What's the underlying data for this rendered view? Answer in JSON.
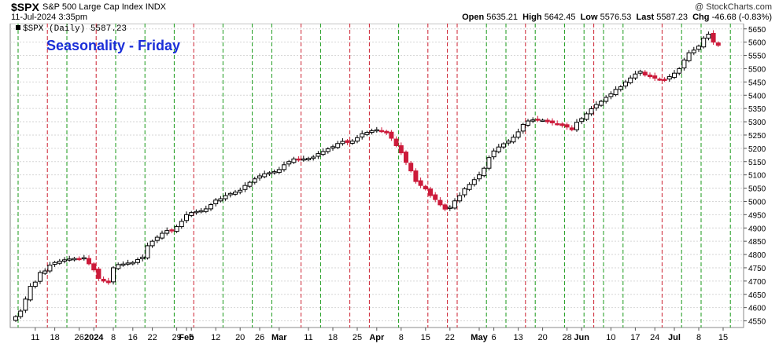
{
  "header": {
    "symbol": "$SPX",
    "name": "S&P 500 Large Cap Index",
    "exchange": "INDX",
    "datetime": "11-Jul-2024 3:35pm",
    "copyright": "@ StockCharts.com",
    "open_label": "Open",
    "open": "5635.21",
    "high_label": "High",
    "high": "5642.45",
    "low_label": "Low",
    "low": "5576.53",
    "last_label": "Last",
    "last": "5587.23",
    "chg_label": "Chg",
    "chg": "-46.68 (-0.83%)"
  },
  "chart_data": {
    "type": "candlestick",
    "title": "Seasonality - Friday",
    "legend": "$SPX (Daily) 5587.23",
    "legend_position": "top-left",
    "ylim": [
      4525,
      5670
    ],
    "y_ticks": [
      4550,
      4600,
      4650,
      4700,
      4750,
      4800,
      4850,
      4900,
      4950,
      5000,
      5050,
      5100,
      5150,
      5200,
      5250,
      5300,
      5350,
      5400,
      5450,
      5500,
      5550,
      5600,
      5650
    ],
    "x_tick_labels": [
      {
        "label": "11",
        "idx": 4
      },
      {
        "label": "18",
        "idx": 8
      },
      {
        "label": "26",
        "idx": 13
      },
      {
        "label": "2024",
        "idx": 16,
        "bold": true
      },
      {
        "label": "8",
        "idx": 20
      },
      {
        "label": "16",
        "idx": 24
      },
      {
        "label": "22",
        "idx": 28
      },
      {
        "label": "29",
        "idx": 33
      },
      {
        "label": "Feb",
        "idx": 35,
        "bold": true
      },
      {
        "label": "5",
        "idx": 36
      },
      {
        "label": "12",
        "idx": 41
      },
      {
        "label": "20",
        "idx": 46
      },
      {
        "label": "26",
        "idx": 50
      },
      {
        "label": "Mar",
        "idx": 54,
        "bold": true
      },
      {
        "label": "11",
        "idx": 60
      },
      {
        "label": "18",
        "idx": 65
      },
      {
        "label": "25",
        "idx": 70
      },
      {
        "label": "Apr",
        "idx": 74,
        "bold": true
      },
      {
        "label": "8",
        "idx": 79
      },
      {
        "label": "15",
        "idx": 84
      },
      {
        "label": "22",
        "idx": 89
      },
      {
        "label": "May",
        "idx": 95,
        "bold": true
      },
      {
        "label": "6",
        "idx": 98
      },
      {
        "label": "13",
        "idx": 103
      },
      {
        "label": "20",
        "idx": 108
      },
      {
        "label": "28",
        "idx": 113
      },
      {
        "label": "Jun",
        "idx": 116,
        "bold": true
      },
      {
        "label": "10",
        "idx": 122
      },
      {
        "label": "17",
        "idx": 127
      },
      {
        "label": "24",
        "idx": 131
      },
      {
        "label": "Jul",
        "idx": 135,
        "bold": true
      },
      {
        "label": "8",
        "idx": 140
      },
      {
        "label": "15",
        "idx": 145
      }
    ],
    "friday_up_idx": [
      0,
      10,
      20,
      26,
      32,
      42,
      48,
      52,
      62,
      78,
      96,
      100,
      106,
      112,
      116,
      120,
      124,
      136,
      140,
      146
    ],
    "friday_down_idx": [
      6,
      16,
      36,
      58,
      68,
      72,
      84,
      88,
      90,
      104,
      118,
      132
    ],
    "closes": [
      4566,
      4587,
      4632,
      4680,
      4696,
      4732,
      4738,
      4760,
      4770,
      4775,
      4780,
      4783,
      4785,
      4784,
      4788,
      4765,
      4742,
      4710,
      4700,
      4694,
      4750,
      4762,
      4764,
      4768,
      4770,
      4781,
      4790,
      4833,
      4850,
      4865,
      4880,
      4890,
      4890,
      4905,
      4925,
      4950,
      4958,
      4962,
      4965,
      4972,
      4988,
      5005,
      5010,
      5022,
      5030,
      5035,
      5042,
      5060,
      5072,
      5085,
      5096,
      5104,
      5108,
      5112,
      5120,
      5138,
      5150,
      5160,
      5157,
      5160,
      5162,
      5167,
      5180,
      5188,
      5198,
      5206,
      5218,
      5226,
      5222,
      5227,
      5240,
      5255,
      5260,
      5266,
      5270,
      5264,
      5258,
      5238,
      5210,
      5183,
      5147,
      5115,
      5075,
      5060,
      5047,
      5022,
      5007,
      4987,
      4971,
      4978,
      5002,
      5022,
      5048,
      5064,
      5082,
      5100,
      5125,
      5165,
      5190,
      5205,
      5217,
      5227,
      5242,
      5262,
      5290,
      5303,
      5307,
      5309,
      5306,
      5300,
      5296,
      5292,
      5286,
      5280,
      5270,
      5298,
      5312,
      5330,
      5349,
      5365,
      5377,
      5392,
      5405,
      5422,
      5432,
      5450,
      5465,
      5480,
      5490,
      5476,
      5470,
      5464,
      5460,
      5458,
      5470,
      5483,
      5500,
      5533,
      5560,
      5570,
      5585,
      5615,
      5630,
      5600,
      5588
    ],
    "x_count": 147,
    "grid": true,
    "last_price": 5587.23,
    "last_change": -46.68
  }
}
